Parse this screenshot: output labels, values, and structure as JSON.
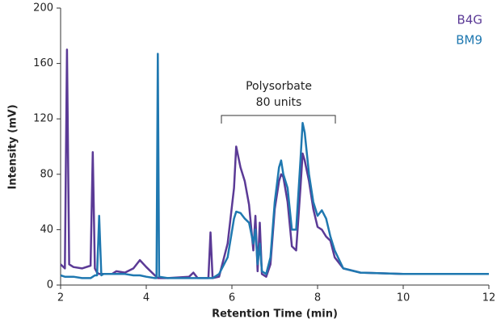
{
  "chart_data": {
    "type": "line",
    "x_label": "Retention Time (min)",
    "y_label": "Intensity (mV)",
    "annotation": [
      "Polysorbate",
      "80 units"
    ],
    "x": [
      2.0,
      2.1,
      2.15,
      2.2,
      2.3,
      2.5,
      2.7,
      2.75,
      2.8,
      2.85,
      2.9,
      2.95,
      3.0,
      3.2,
      3.3,
      3.5,
      3.7,
      3.85,
      4.0,
      4.2,
      4.24,
      4.27,
      4.3,
      4.5,
      5.0,
      5.1,
      5.2,
      5.45,
      5.5,
      5.55,
      5.7,
      5.9,
      6.05,
      6.1,
      6.2,
      6.3,
      6.4,
      6.5,
      6.55,
      6.6,
      6.65,
      6.7,
      6.8,
      6.9,
      7.0,
      7.1,
      7.15,
      7.2,
      7.3,
      7.4,
      7.5,
      7.6,
      7.65,
      7.7,
      7.8,
      7.9,
      8.0,
      8.1,
      8.2,
      8.3,
      8.4,
      8.6,
      9.0,
      10.0,
      11.0,
      12.0
    ],
    "series": [
      {
        "name": "B4G",
        "color": "#5b3a96",
        "values": [
          15,
          12,
          170,
          15,
          13,
          12,
          14,
          96,
          12,
          9,
          8,
          8,
          8,
          8,
          10,
          9,
          12,
          18,
          13,
          7,
          6,
          5,
          5,
          5,
          6,
          9,
          5,
          5,
          38,
          5,
          6,
          30,
          70,
          100,
          85,
          75,
          58,
          25,
          50,
          10,
          45,
          8,
          6,
          15,
          55,
          75,
          80,
          78,
          60,
          28,
          25,
          70,
          95,
          90,
          75,
          55,
          42,
          40,
          35,
          32,
          20,
          12,
          9,
          8,
          8,
          8
        ]
      },
      {
        "name": "BM9",
        "color": "#1f78b0",
        "values": [
          7,
          6,
          6,
          6,
          6,
          5,
          5,
          6,
          7,
          7,
          50,
          7,
          8,
          8,
          8,
          8,
          7,
          7,
          6,
          5,
          5,
          167,
          6,
          5,
          5,
          5,
          5,
          5,
          5,
          5,
          8,
          20,
          48,
          53,
          52,
          48,
          45,
          30,
          40,
          15,
          30,
          10,
          8,
          20,
          60,
          85,
          90,
          80,
          70,
          40,
          40,
          90,
          117,
          110,
          80,
          60,
          50,
          54,
          48,
          35,
          25,
          12,
          9,
          8,
          8,
          8
        ]
      }
    ],
    "xlim": [
      2,
      12
    ],
    "xticks": [
      2,
      4,
      6,
      8,
      10,
      12
    ],
    "ylim": [
      0,
      200
    ],
    "yticks": [
      0,
      40,
      80,
      120,
      160,
      200
    ],
    "grid": false,
    "legend": "top-right"
  }
}
